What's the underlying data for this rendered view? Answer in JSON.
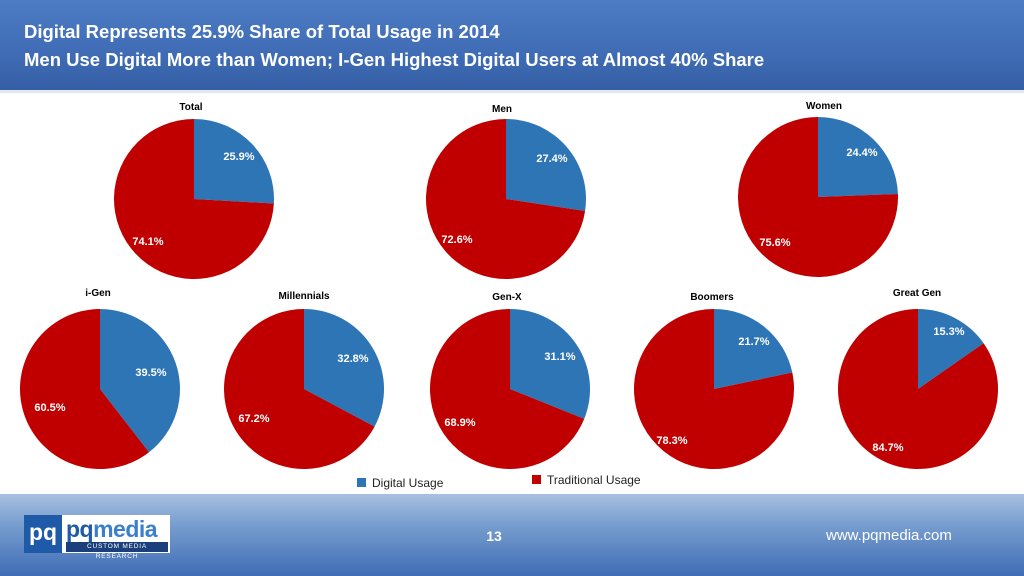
{
  "header": {
    "title_line1": "Digital Represents 25.9% Share of Total Usage in 2014",
    "title_line2": "Men Use Digital More than Women; I-Gen Highest Digital Users at Almost 40% Share"
  },
  "colors": {
    "digital": "#2e75b6",
    "traditional": "#c00000"
  },
  "chart_data": [
    {
      "type": "pie",
      "title": "Total",
      "categories": [
        "Digital Usage",
        "Traditional Usage"
      ],
      "values": [
        25.9,
        74.1
      ],
      "labels": [
        "25.9%",
        "74.1%"
      ]
    },
    {
      "type": "pie",
      "title": "Men",
      "categories": [
        "Digital Usage",
        "Traditional Usage"
      ],
      "values": [
        27.4,
        72.6
      ],
      "labels": [
        "27.4%",
        "72.6%"
      ]
    },
    {
      "type": "pie",
      "title": "Women",
      "categories": [
        "Digital Usage",
        "Traditional Usage"
      ],
      "values": [
        24.4,
        75.6
      ],
      "labels": [
        "24.4%",
        "75.6%"
      ]
    },
    {
      "type": "pie",
      "title": "i-Gen",
      "categories": [
        "Digital Usage",
        "Traditional Usage"
      ],
      "values": [
        39.5,
        60.5
      ],
      "labels": [
        "39.5%",
        "60.5%"
      ]
    },
    {
      "type": "pie",
      "title": "Millennials",
      "categories": [
        "Digital Usage",
        "Traditional Usage"
      ],
      "values": [
        32.8,
        67.2
      ],
      "labels": [
        "32.8%",
        "67.2%"
      ]
    },
    {
      "type": "pie",
      "title": "Gen-X",
      "categories": [
        "Digital Usage",
        "Traditional Usage"
      ],
      "values": [
        31.1,
        68.9
      ],
      "labels": [
        "31.1%",
        "68.9%"
      ]
    },
    {
      "type": "pie",
      "title": "Boomers",
      "categories": [
        "Digital Usage",
        "Traditional Usage"
      ],
      "values": [
        21.7,
        78.3
      ],
      "labels": [
        "21.7%",
        "78.3%"
      ]
    },
    {
      "type": "pie",
      "title": "Great Gen",
      "categories": [
        "Digital Usage",
        "Traditional Usage"
      ],
      "values": [
        15.3,
        84.7
      ],
      "labels": [
        "15.3%",
        "84.7%"
      ]
    }
  ],
  "legend": {
    "digital": "Digital Usage",
    "traditional": "Traditional Usage"
  },
  "footer": {
    "logo_pq": "pq",
    "logo_name_a": "pq",
    "logo_name_b": "media",
    "logo_tagline": "CUSTOM MEDIA RESEARCH",
    "page_number": "13",
    "url": "www.pqmedia.com"
  }
}
